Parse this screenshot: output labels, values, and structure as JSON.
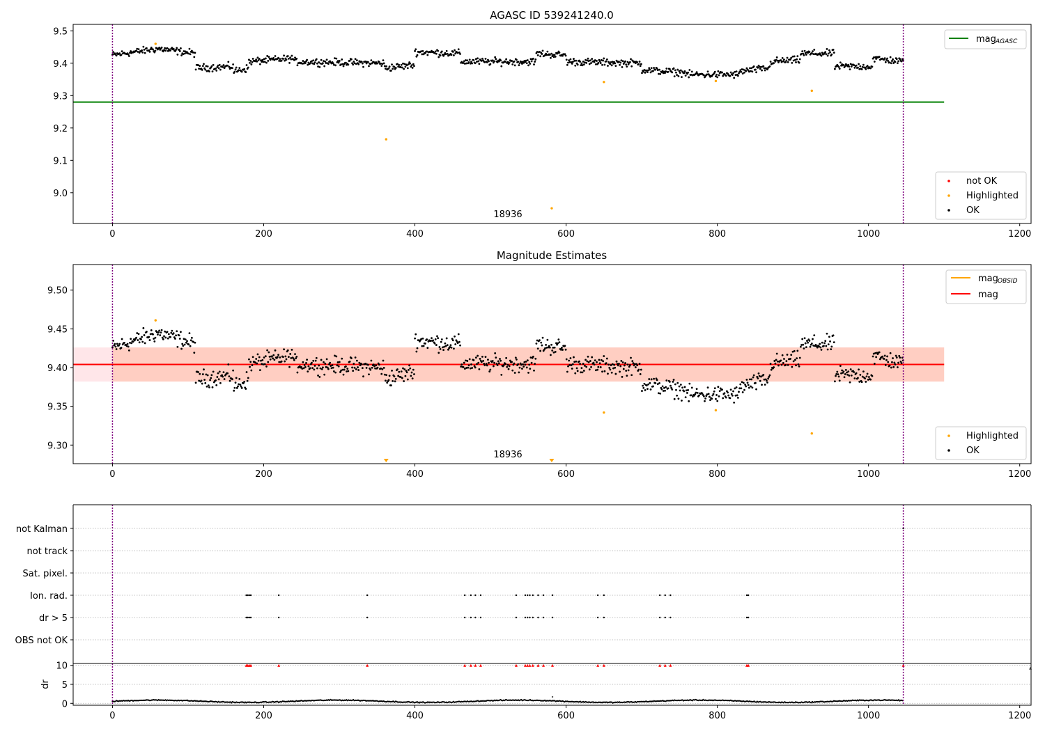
{
  "colors": {
    "ok": "#000000",
    "highlighted": "#ffa500",
    "not_ok": "#ff0000",
    "mag_agasc": "#008000",
    "mag_line": "#ff0000",
    "mag_obsid": "#ffa500",
    "band_fill": "#ffb6c1",
    "band_fill_2": "#ffa07a",
    "obs_boundary": "#800080",
    "grid": "#b0b0b0"
  },
  "chart_data": [
    {
      "panel": "top",
      "type": "scatter",
      "title": "AGASC ID 539241240.0",
      "xlim": [
        -52,
        1215
      ],
      "ylim": [
        8.905,
        9.52
      ],
      "xticks": [
        0,
        200,
        400,
        600,
        800,
        1000,
        1200
      ],
      "yticks": [
        9.0,
        9.1,
        9.2,
        9.3,
        9.4,
        9.5
      ],
      "ytick_labels": [
        "9.0",
        "9.1",
        "9.2",
        "9.3",
        "9.4",
        "9.5"
      ],
      "obs_boundaries": [
        0,
        1046
      ],
      "obsid_label": {
        "text": "18936",
        "x": 523,
        "y": 8.93
      },
      "mag_agasc": {
        "value": 9.28,
        "x": [
          -52,
          1100
        ]
      },
      "segments": [
        {
          "x": [
            0,
            60
          ],
          "y": [
            9.425,
            9.445
          ]
        },
        {
          "x": [
            60,
            110
          ],
          "y": [
            9.445,
            9.43
          ]
        },
        {
          "x": [
            110,
            160
          ],
          "y": [
            9.385,
            9.39
          ]
        },
        {
          "x": [
            160,
            180
          ],
          "y": [
            9.375,
            9.385
          ]
        },
        {
          "x": [
            180,
            240
          ],
          "y": [
            9.405,
            9.415
          ]
        },
        {
          "x": [
            240,
            360
          ],
          "y": [
            9.405,
            9.4
          ]
        },
        {
          "x": [
            360,
            400
          ],
          "y": [
            9.385,
            9.395
          ]
        },
        {
          "x": [
            400,
            460
          ],
          "y": [
            9.435,
            9.43
          ]
        },
        {
          "x": [
            460,
            560
          ],
          "y": [
            9.405,
            9.405
          ]
        },
        {
          "x": [
            560,
            600
          ],
          "y": [
            9.43,
            9.425
          ]
        },
        {
          "x": [
            600,
            700
          ],
          "y": [
            9.405,
            9.4
          ]
        },
        {
          "x": [
            700,
            760
          ],
          "y": [
            9.38,
            9.37
          ]
        },
        {
          "x": [
            760,
            830
          ],
          "y": [
            9.365,
            9.365
          ]
        },
        {
          "x": [
            830,
            870
          ],
          "y": [
            9.375,
            9.385
          ]
        },
        {
          "x": [
            870,
            910
          ],
          "y": [
            9.405,
            9.41
          ]
        },
        {
          "x": [
            910,
            955
          ],
          "y": [
            9.43,
            9.43
          ]
        },
        {
          "x": [
            955,
            1005
          ],
          "y": [
            9.39,
            9.39
          ]
        },
        {
          "x": [
            1005,
            1046
          ],
          "y": [
            9.415,
            9.405
          ]
        }
      ],
      "highlighted_points": [
        {
          "x": 57,
          "y": 9.46
        },
        {
          "x": 362,
          "y": 9.165
        },
        {
          "x": 581,
          "y": 8.952
        },
        {
          "x": 650,
          "y": 9.342
        },
        {
          "x": 798,
          "y": 9.345
        },
        {
          "x": 925,
          "y": 9.315
        }
      ],
      "legend_lines": [
        {
          "label": "mag",
          "sub": "AGASC",
          "color": "#008000"
        }
      ],
      "legend_points": [
        {
          "label": "not OK",
          "color": "#ff0000"
        },
        {
          "label": "Highlighted",
          "color": "#ffa500"
        },
        {
          "label": "OK",
          "color": "#000000"
        }
      ]
    },
    {
      "panel": "middle",
      "type": "scatter",
      "title": "Magnitude Estimates",
      "xlim": [
        -52,
        1215
      ],
      "ylim": [
        9.276,
        9.533
      ],
      "xticks": [
        0,
        200,
        400,
        600,
        800,
        1000,
        1200
      ],
      "yticks": [
        9.3,
        9.35,
        9.4,
        9.45,
        9.5
      ],
      "ytick_labels": [
        "9.30",
        "9.35",
        "9.40",
        "9.45",
        "9.50"
      ],
      "obs_boundaries": [
        0,
        1046
      ],
      "obsid_label": {
        "text": "18936",
        "x": 523,
        "y": 9.283
      },
      "mag": {
        "value": 9.404,
        "band": [
          9.382,
          9.426
        ],
        "x": [
          -52,
          1100
        ]
      },
      "mag_obsid": {
        "value": 9.404,
        "band": [
          9.382,
          9.426
        ],
        "x": [
          0,
          1100
        ]
      },
      "highlighted_points": [
        {
          "x": 57,
          "y": 9.461
        },
        {
          "x": 650,
          "y": 9.342
        },
        {
          "x": 798,
          "y": 9.345
        },
        {
          "x": 925,
          "y": 9.315
        }
      ],
      "offscale_markers": [
        {
          "x": 362
        },
        {
          "x": 581
        }
      ],
      "legend_lines": [
        {
          "label": "mag",
          "sub": "OBSID",
          "color": "#ffa500"
        },
        {
          "label": "mag",
          "sub": "",
          "color": "#ff0000"
        }
      ],
      "legend_points": [
        {
          "label": "Highlighted",
          "color": "#ffa500"
        },
        {
          "label": "OK",
          "color": "#000000"
        }
      ]
    },
    {
      "panel": "flags",
      "type": "scatter",
      "xlim": [
        -52,
        1215
      ],
      "categories": [
        "not Kalman",
        "not track",
        "Sat. pixel.",
        "Ion. rad.",
        "dr > 5",
        "OBS not OK"
      ],
      "obs_boundaries": [
        0,
        1046
      ],
      "not_kalman_points": [
        1046
      ],
      "ion_rad_points": [
        177,
        179,
        181,
        183,
        220,
        337,
        466,
        474,
        480,
        487,
        534,
        546,
        549,
        552,
        556,
        563,
        570,
        582,
        642,
        650,
        724,
        731,
        738,
        839,
        841
      ],
      "dr_gt_5_points": [
        177,
        179,
        181,
        183,
        220,
        337,
        466,
        474,
        480,
        487,
        534,
        546,
        549,
        552,
        556,
        563,
        570,
        582,
        642,
        650,
        724,
        731,
        738,
        839,
        841
      ]
    },
    {
      "panel": "dr",
      "type": "line",
      "ylabel": "dr",
      "xlim": [
        -52,
        1215
      ],
      "ylim": [
        -0.5,
        10.5
      ],
      "xticks": [
        0,
        200,
        400,
        600,
        800,
        1000,
        1200
      ],
      "yticks": [
        0,
        5,
        10
      ],
      "ytick_labels": [
        "0",
        "5",
        "10"
      ],
      "obs_boundaries": [
        0,
        1046
      ],
      "capped_points": [
        177,
        179,
        181,
        183,
        220,
        337,
        466,
        474,
        480,
        487,
        534,
        546,
        549,
        552,
        556,
        563,
        570,
        582,
        642,
        650,
        724,
        731,
        738,
        839,
        841,
        1046
      ],
      "offscale_x": 1215,
      "cap_value": 10,
      "outlier": {
        "x": 582,
        "y": 1.7
      }
    }
  ]
}
